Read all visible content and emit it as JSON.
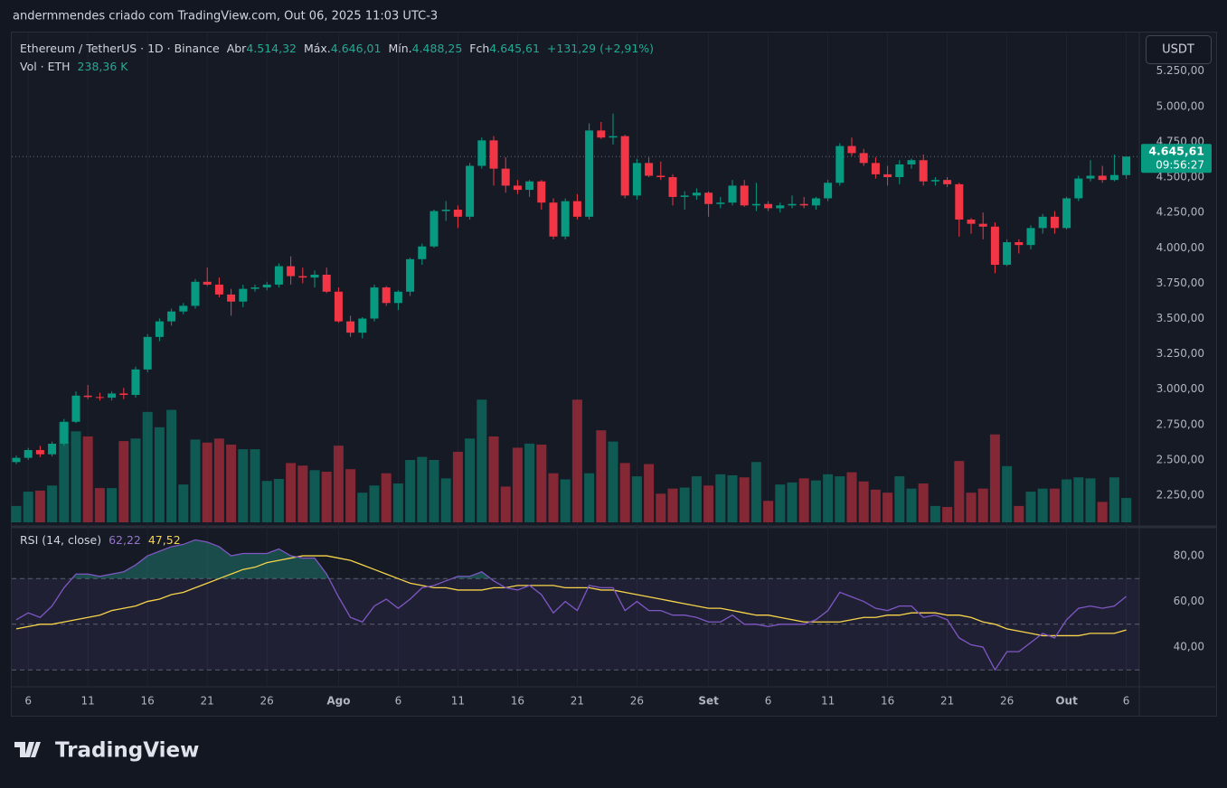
{
  "header": {
    "credit": "andermmendes criado com TradingView.com, Out 06, 2025 11:03 UTC-3"
  },
  "chart_data": {
    "type": "candlestick",
    "legend": {
      "symbol": "Ethereum / TetherUS · 1D · Binance",
      "open_label": "Abr",
      "open": "4.514,32",
      "high_label": "Máx.",
      "high": "4.646,01",
      "low_label": "Mín.",
      "low": "4.488,25",
      "close_label": "Fch",
      "close": "4.645,61",
      "change": "+131,29 (+2,91%)"
    },
    "volume_legend": {
      "label": "Vol · ETH",
      "value": "238,36 K"
    },
    "currency": "USDT",
    "last_price": {
      "label": "4.645,61",
      "countdown": "09:56:27"
    },
    "categories": [
      null,
      "6",
      null,
      null,
      null,
      null,
      "11",
      null,
      null,
      null,
      null,
      "16",
      null,
      null,
      null,
      null,
      "21",
      null,
      null,
      null,
      null,
      "26",
      null,
      null,
      null,
      null,
      null,
      "Ago",
      null,
      null,
      null,
      null,
      "6",
      null,
      null,
      null,
      null,
      "11",
      null,
      null,
      null,
      null,
      "16",
      null,
      null,
      null,
      null,
      "21",
      null,
      null,
      null,
      null,
      "26",
      null,
      null,
      null,
      null,
      null,
      "Set",
      null,
      null,
      null,
      null,
      "6",
      null,
      null,
      null,
      null,
      "11",
      null,
      null,
      null,
      null,
      "16",
      null,
      null,
      null,
      null,
      "21",
      null,
      null,
      null,
      null,
      "26",
      null,
      null,
      null,
      null,
      "Out",
      null,
      null,
      null,
      null,
      "6"
    ],
    "open": [
      2485,
      2515,
      2570,
      2540,
      2615,
      2770,
      2955,
      2945,
      2940,
      2970,
      2960,
      3140,
      3370,
      3480,
      3550,
      3590,
      3760,
      3740,
      3670,
      3620,
      3710,
      3720,
      3740,
      3870,
      3800,
      3790,
      3810,
      3690,
      3480,
      3400,
      3500,
      3720,
      3610,
      3690,
      3920,
      4010,
      4260,
      4270,
      4220,
      4580,
      4760,
      4560,
      4440,
      4410,
      4470,
      4320,
      4080,
      4330,
      4220,
      4830,
      4780,
      4790,
      4370,
      4600,
      4510,
      4500,
      4360,
      4370,
      4390,
      4310,
      4320,
      4440,
      4300,
      4310,
      4280,
      4300,
      4310,
      4300,
      4350,
      4460,
      4720,
      4670,
      4600,
      4520,
      4500,
      4590,
      4620,
      4470,
      4480,
      4450,
      4200,
      4170,
      4150,
      3880,
      4040,
      4020,
      4140,
      4220,
      4140,
      4350,
      4490,
      4510,
      4480,
      4514.32
    ],
    "high": [
      2530,
      2585,
      2600,
      2630,
      2790,
      2985,
      3030,
      2975,
      2985,
      3010,
      3160,
      3390,
      3500,
      3570,
      3610,
      3780,
      3860,
      3790,
      3710,
      3740,
      3740,
      3760,
      3890,
      3940,
      3860,
      3840,
      3860,
      3720,
      3520,
      3510,
      3740,
      3730,
      3700,
      3930,
      4030,
      4270,
      4330,
      4300,
      4600,
      4780,
      4790,
      4640,
      4480,
      4480,
      4480,
      4350,
      4350,
      4380,
      4880,
      4890,
      4950,
      4800,
      4630,
      4640,
      4610,
      4520,
      4400,
      4420,
      4400,
      4360,
      4480,
      4480,
      4460,
      4330,
      4320,
      4370,
      4360,
      4360,
      4480,
      4740,
      4780,
      4700,
      4640,
      4580,
      4620,
      4630,
      4660,
      4500,
      4500,
      4460,
      4210,
      4250,
      4180,
      4060,
      4060,
      4160,
      4240,
      4260,
      4360,
      4510,
      4620,
      4580,
      4660,
      4646.01
    ],
    "low": [
      2470,
      2500,
      2520,
      2525,
      2600,
      2760,
      2930,
      2920,
      2920,
      2930,
      2940,
      3120,
      3340,
      3450,
      3530,
      3570,
      3730,
      3650,
      3520,
      3580,
      3690,
      3700,
      3720,
      3740,
      3750,
      3720,
      3680,
      3470,
      3370,
      3360,
      3480,
      3590,
      3560,
      3660,
      3880,
      4000,
      4190,
      4140,
      4200,
      4560,
      4440,
      4390,
      4380,
      4360,
      4270,
      4060,
      4060,
      4200,
      4200,
      4770,
      4730,
      4350,
      4340,
      4500,
      4480,
      4300,
      4270,
      4340,
      4220,
      4280,
      4300,
      4290,
      4260,
      4260,
      4250,
      4280,
      4280,
      4270,
      4330,
      4440,
      4650,
      4580,
      4490,
      4440,
      4450,
      4560,
      4440,
      4440,
      4430,
      4080,
      4100,
      4060,
      3820,
      3870,
      3960,
      3990,
      4100,
      4100,
      4130,
      4330,
      4470,
      4460,
      4470,
      4488.25
    ],
    "close": [
      2515,
      2570,
      2540,
      2615,
      2770,
      2955,
      2945,
      2940,
      2970,
      2960,
      3140,
      3370,
      3480,
      3550,
      3590,
      3760,
      3740,
      3670,
      3620,
      3710,
      3720,
      3740,
      3870,
      3800,
      3790,
      3810,
      3690,
      3480,
      3400,
      3500,
      3720,
      3610,
      3690,
      3920,
      4010,
      4260,
      4270,
      4220,
      4580,
      4760,
      4560,
      4440,
      4410,
      4470,
      4320,
      4080,
      4330,
      4220,
      4830,
      4780,
      4790,
      4370,
      4600,
      4510,
      4500,
      4360,
      4370,
      4390,
      4310,
      4320,
      4440,
      4300,
      4310,
      4280,
      4300,
      4310,
      4300,
      4350,
      4460,
      4720,
      4670,
      4600,
      4520,
      4500,
      4590,
      4620,
      4470,
      4480,
      4450,
      4200,
      4170,
      4150,
      3880,
      4040,
      4020,
      4140,
      4220,
      4140,
      4350,
      4490,
      4510,
      4480,
      4515,
      4645.61
    ],
    "volume": [
      160,
      300,
      310,
      360,
      980,
      890,
      840,
      335,
      335,
      795,
      820,
      1080,
      930,
      1100,
      370,
      810,
      780,
      820,
      760,
      715,
      715,
      405,
      425,
      580,
      555,
      510,
      495,
      750,
      520,
      290,
      360,
      480,
      380,
      610,
      640,
      610,
      430,
      690,
      820,
      1200,
      840,
      350,
      730,
      770,
      760,
      480,
      420,
      1200,
      480,
      900,
      790,
      580,
      450,
      570,
      280,
      330,
      340,
      450,
      360,
      470,
      460,
      440,
      590,
      210,
      370,
      390,
      430,
      410,
      470,
      450,
      490,
      400,
      320,
      290,
      450,
      330,
      380,
      160,
      150,
      600,
      290,
      330,
      860,
      550,
      160,
      300,
      330,
      330,
      420,
      440,
      430,
      200,
      440,
      238.36
    ],
    "up_color": "#089981",
    "down_color": "#f23645",
    "ylim": [
      2059,
      5529
    ],
    "yticks": [
      {
        "value": 2250,
        "label": "2.250,00"
      },
      {
        "value": 2500,
        "label": "2.500,00"
      },
      {
        "value": 2750,
        "label": "2.750,00"
      },
      {
        "value": 3000,
        "label": "3.000,00"
      },
      {
        "value": 3250,
        "label": "3.250,00"
      },
      {
        "value": 3500,
        "label": "3.500,00"
      },
      {
        "value": 3750,
        "label": "3.750,00"
      },
      {
        "value": 4000,
        "label": "4.000,00"
      },
      {
        "value": 4250,
        "label": "4.250,00"
      },
      {
        "value": 4500,
        "label": "4.500,00"
      },
      {
        "value": 4750,
        "label": "4.750,00"
      },
      {
        "value": 5000,
        "label": "5.000,00"
      },
      {
        "value": 5250,
        "label": "5.250,00"
      }
    ],
    "volume_ylim": [
      0,
      4800
    ],
    "grid": true,
    "rsi": {
      "title": "RSI (14, close)",
      "value_label": "62,22",
      "ma_value_label": "47,52",
      "color": "#7e57c2",
      "ma_color": "#f7d44a",
      "values": [
        52,
        55,
        53,
        58,
        66,
        72,
        72,
        71,
        72,
        73,
        76,
        80,
        82,
        84,
        85,
        87,
        86,
        84,
        80,
        81,
        81,
        81,
        83,
        80,
        79,
        79,
        72,
        62,
        53,
        51,
        58,
        61,
        57,
        61,
        66,
        67,
        69,
        71,
        71,
        73,
        69,
        66,
        65,
        67,
        63,
        55,
        60,
        56,
        67,
        66,
        66,
        56,
        60,
        56,
        56,
        54,
        54,
        53,
        51,
        51,
        54,
        50,
        50,
        49,
        50,
        50,
        50,
        52,
        56,
        64,
        62,
        60,
        57,
        56,
        58,
        58,
        53,
        54,
        52,
        44,
        41,
        40,
        30,
        38,
        38,
        42,
        46,
        44,
        52,
        57,
        58,
        57,
        58,
        62.22
      ],
      "ma": [
        48,
        49,
        50,
        50,
        51,
        52,
        53,
        54,
        56,
        57,
        58,
        60,
        61,
        63,
        64,
        66,
        68,
        70,
        72,
        74,
        75,
        77,
        78,
        79,
        80,
        80,
        80,
        79,
        78,
        76,
        74,
        72,
        70,
        68,
        67,
        66,
        66,
        65,
        65,
        65,
        66,
        66,
        67,
        67,
        67,
        67,
        66,
        66,
        66,
        65,
        65,
        64,
        63,
        62,
        61,
        60,
        59,
        58,
        57,
        57,
        56,
        55,
        54,
        54,
        53,
        52,
        51,
        51,
        51,
        51,
        52,
        53,
        53,
        54,
        54,
        55,
        55,
        55,
        54,
        54,
        53,
        51,
        50,
        48,
        47,
        46,
        45,
        45,
        45,
        45,
        46,
        46,
        46,
        47.52
      ],
      "ylim": [
        22.6,
        91.9
      ],
      "yticks": [
        {
          "value": 40,
          "label": "40,00"
        },
        {
          "value": 60,
          "label": "60,00"
        },
        {
          "value": 80,
          "label": "80,00"
        }
      ],
      "levels": [
        70,
        50,
        30
      ]
    }
  },
  "footer": {
    "logo": "TradingView"
  }
}
